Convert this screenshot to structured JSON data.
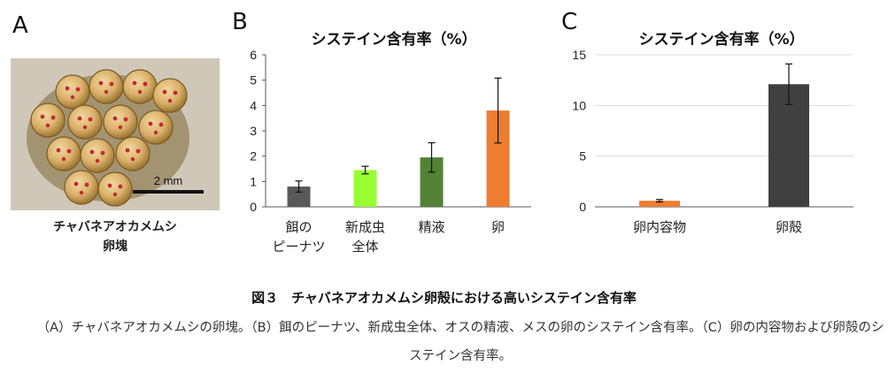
{
  "panels": {
    "a": {
      "letter": "A",
      "caption_line1": "チャバネアオカメムシ",
      "caption_line2": "卵塊",
      "scale_label": "2 mm"
    },
    "b": {
      "letter": "B"
    },
    "c": {
      "letter": "C"
    }
  },
  "chart_data": [
    {
      "type": "bar",
      "title": "システイン含有率（%）",
      "categories": [
        [
          "餌の",
          "ピーナツ"
        ],
        [
          "新成虫",
          "全体"
        ],
        [
          "精液"
        ],
        [
          "卵"
        ]
      ],
      "values": [
        0.8,
        1.45,
        1.95,
        3.8
      ],
      "error": [
        0.22,
        0.15,
        0.58,
        1.28
      ],
      "colors": [
        "#595959",
        "#99ff33",
        "#548235",
        "#ed7d31"
      ],
      "ylim": [
        0,
        6
      ],
      "yticks": [
        0,
        1,
        2,
        3,
        4,
        5,
        6
      ],
      "grid": false
    },
    {
      "type": "bar",
      "title": "システイン含有率（%）",
      "categories": [
        [
          "卵内容物"
        ],
        [
          "卵殻"
        ]
      ],
      "values": [
        0.6,
        12.1
      ],
      "error": [
        0.12,
        2.0
      ],
      "colors": [
        "#ed7d31",
        "#404040"
      ],
      "ylim": [
        0,
        15
      ],
      "yticks": [
        0,
        5,
        10,
        15
      ],
      "grid": true
    }
  ],
  "figure": {
    "title": "図３　チャバネアオカメムシ卵殻における高いシステイン含有率",
    "description": "（A）チャバネアオカメムシの卵塊。（B）餌のピーナツ、新成虫全体、オスの精液、メスの卵のシステイン含有率。（C）卵の内容物および卵殻のシステイン含有率。"
  }
}
